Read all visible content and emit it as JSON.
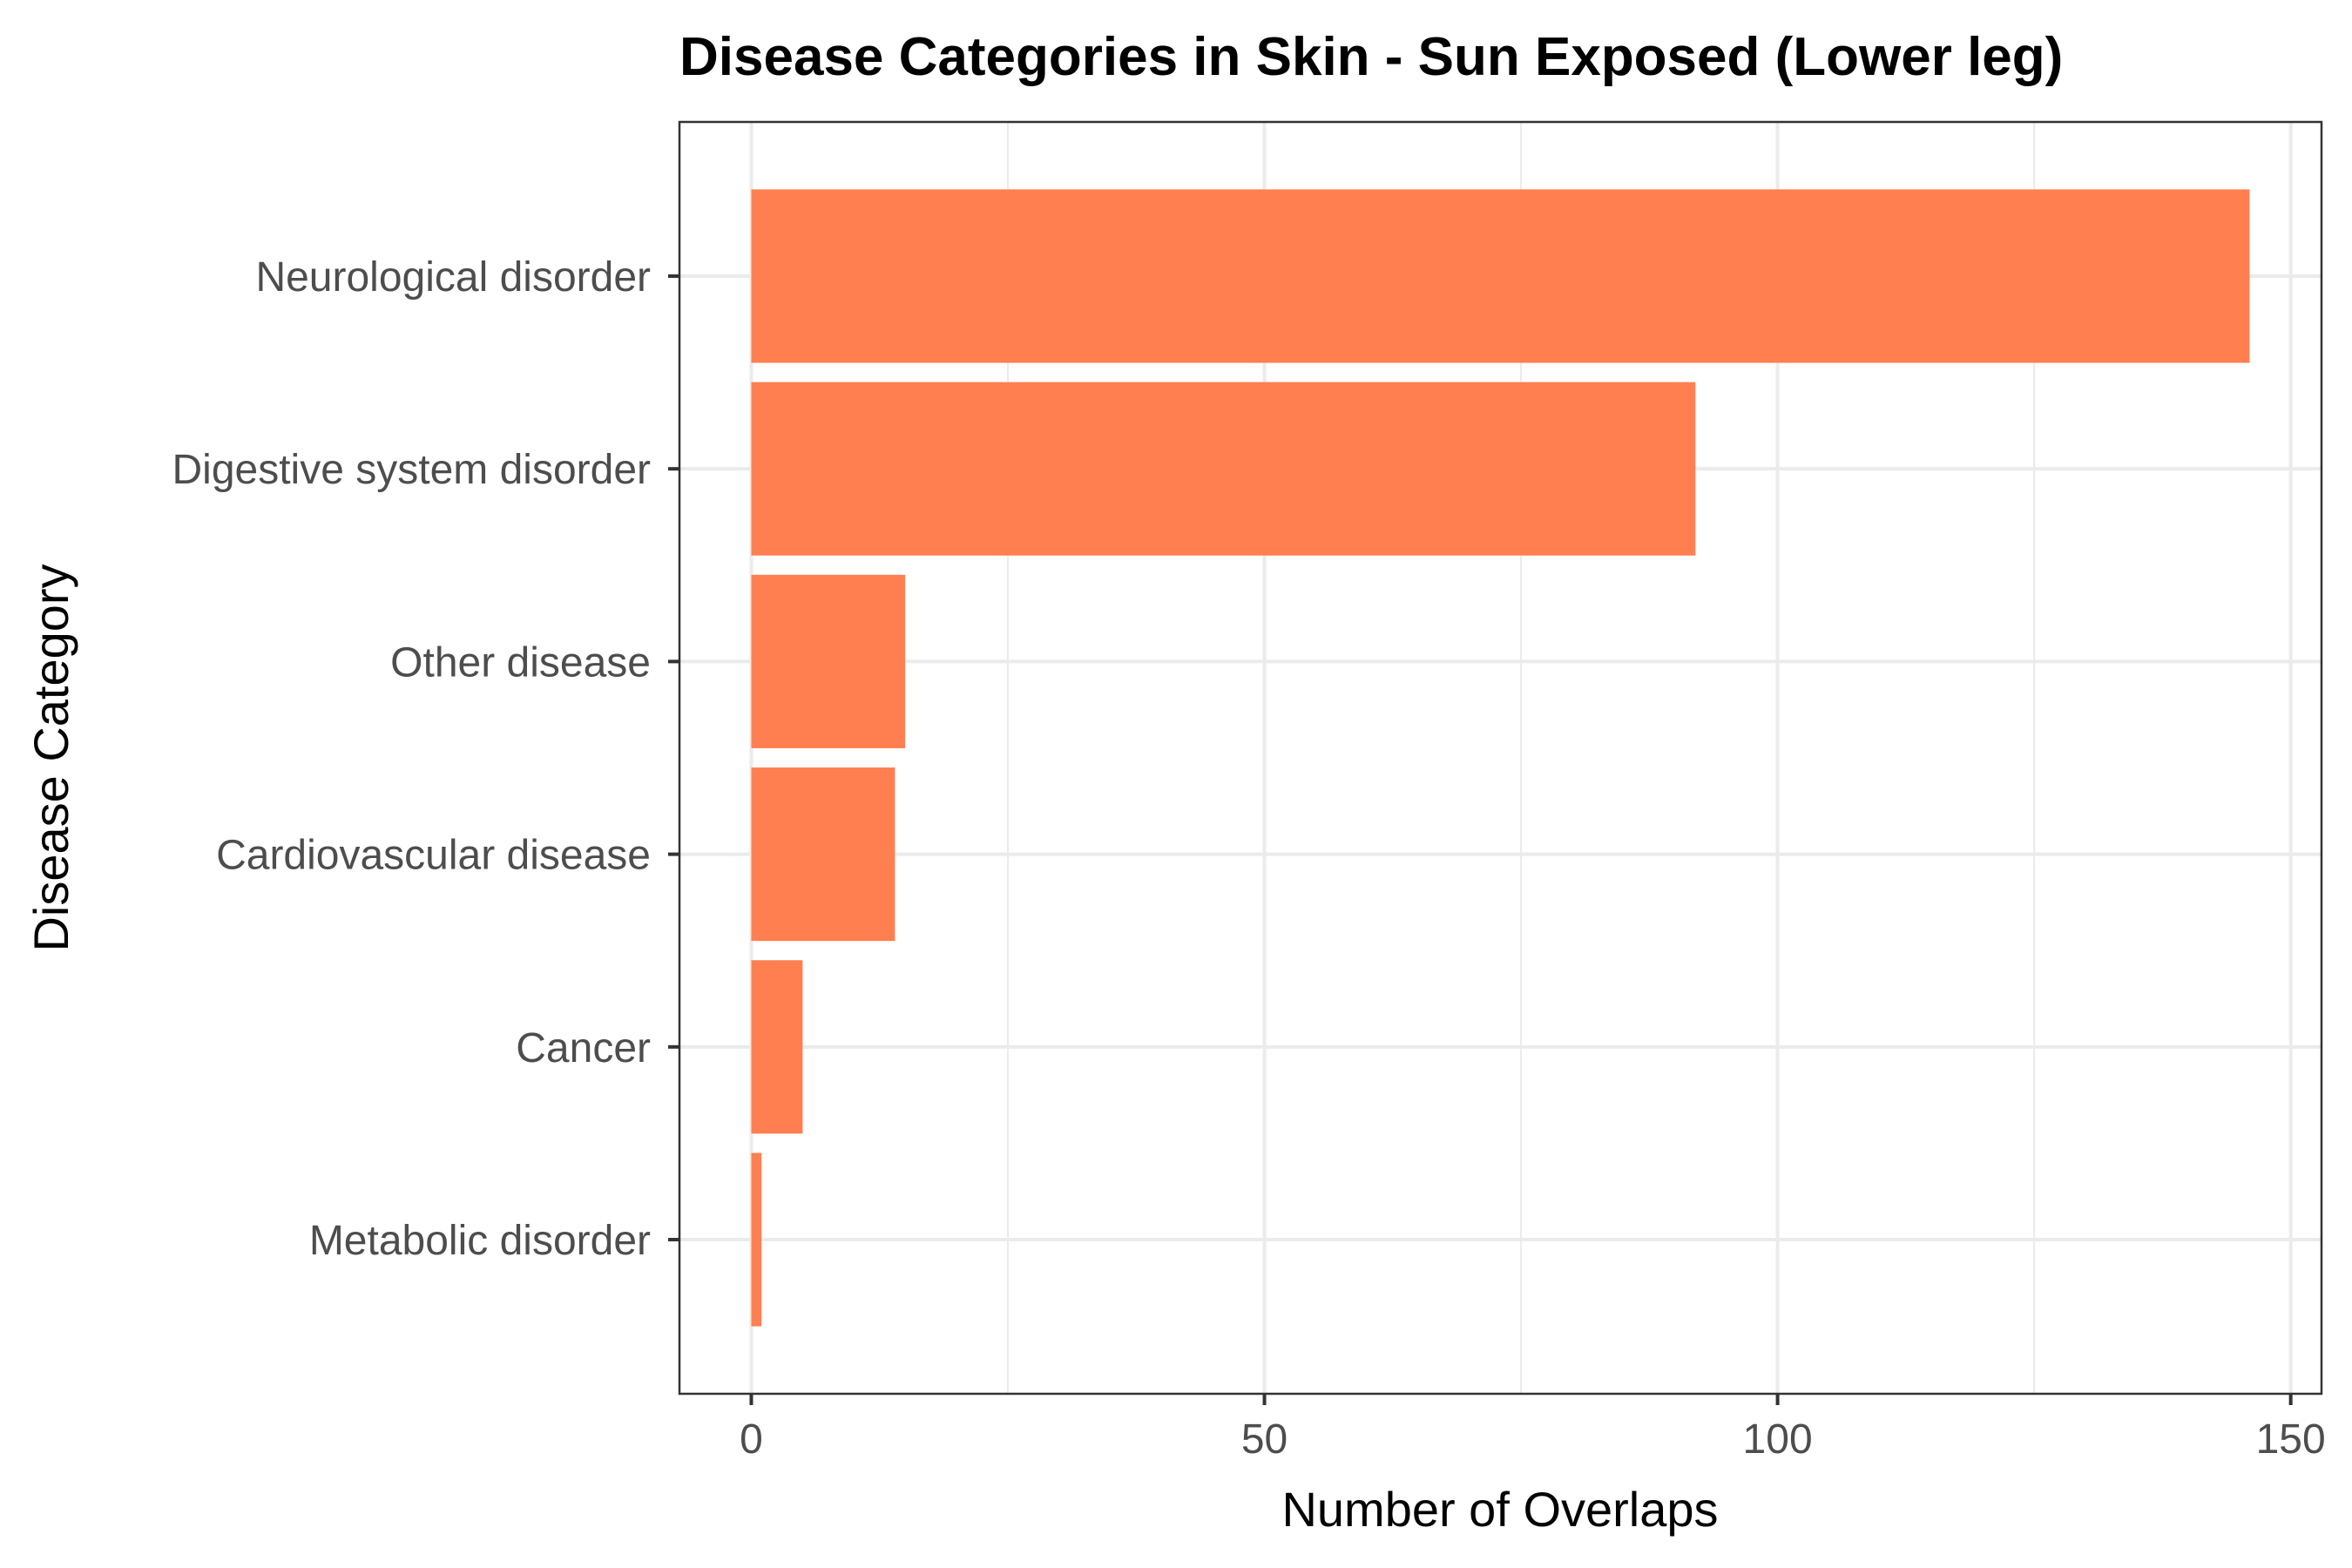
{
  "chart_data": {
    "type": "bar",
    "orientation": "horizontal",
    "title": "Disease Categories in Skin - Sun Exposed (Lower leg)",
    "xlabel": "Number of Overlaps",
    "ylabel": "Disease Category",
    "categories": [
      "Neurological disorder",
      "Digestive system disorder",
      "Other disease",
      "Cardiovascular disease",
      "Cancer",
      "Metabolic disorder"
    ],
    "values": [
      146,
      92,
      15,
      14,
      5,
      1
    ],
    "xlim": [
      -7,
      153
    ],
    "x_ticks": [
      "0",
      "50",
      "100",
      "150"
    ],
    "x_tick_values": [
      0,
      50,
      100,
      150
    ],
    "x_minor_grid": [
      25,
      75,
      125
    ],
    "grid": true,
    "legend": "none",
    "colors": {
      "bar": "#FF7F50",
      "grid": "#EBEBEB",
      "panel_border": "#333333",
      "tick_label": "#4D4D4D",
      "background": "#FFFFFF"
    }
  }
}
